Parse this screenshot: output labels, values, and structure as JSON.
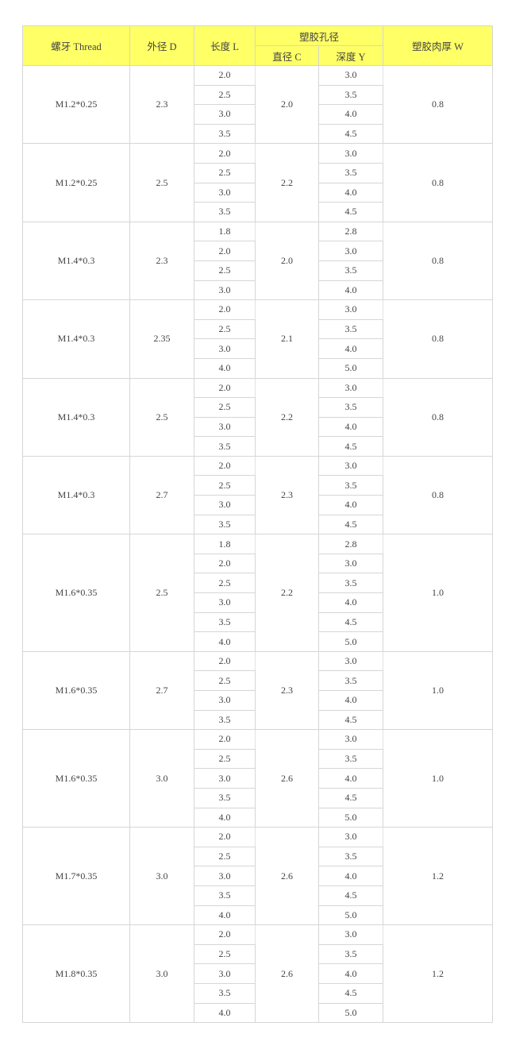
{
  "header": {
    "thread": "螺牙 Thread",
    "outer_d": "外径 D",
    "length_l": "长度 L",
    "hole": "塑胶孔径",
    "dia_c": "直径 C",
    "depth_y": "深度 Y",
    "wall_w": "塑胶肉厚 W"
  },
  "colors": {
    "header_bg": "#ffff66",
    "border": "#d6d6d6"
  },
  "groups": [
    {
      "thread": "M1.2*0.25",
      "d": "2.3",
      "c": "2.0",
      "w": "0.8",
      "l": [
        "2.0",
        "2.5",
        "3.0",
        "3.5"
      ],
      "y": [
        "3.0",
        "3.5",
        "4.0",
        "4.5"
      ]
    },
    {
      "thread": "M1.2*0.25",
      "d": "2.5",
      "c": "2.2",
      "w": "0.8",
      "l": [
        "2.0",
        "2.5",
        "3.0",
        "3.5"
      ],
      "y": [
        "3.0",
        "3.5",
        "4.0",
        "4.5"
      ]
    },
    {
      "thread": "M1.4*0.3",
      "d": "2.3",
      "c": "2.0",
      "w": "0.8",
      "l": [
        "1.8",
        "2.0",
        "2.5",
        "3.0"
      ],
      "y": [
        "2.8",
        "3.0",
        "3.5",
        "4.0"
      ]
    },
    {
      "thread": "M1.4*0.3",
      "d": "2.35",
      "c": "2.1",
      "w": "0.8",
      "l": [
        "2.0",
        "2.5",
        "3.0",
        "4.0"
      ],
      "y": [
        "3.0",
        "3.5",
        "4.0",
        "5.0"
      ]
    },
    {
      "thread": "M1.4*0.3",
      "d": "2.5",
      "c": "2.2",
      "w": "0.8",
      "l": [
        "2.0",
        "2.5",
        "3.0",
        "3.5"
      ],
      "y": [
        "3.0",
        "3.5",
        "4.0",
        "4.5"
      ]
    },
    {
      "thread": "M1.4*0.3",
      "d": "2.7",
      "c": "2.3",
      "w": "0.8",
      "l": [
        "2.0",
        "2.5",
        "3.0",
        "3.5"
      ],
      "y": [
        "3.0",
        "3.5",
        "4.0",
        "4.5"
      ]
    },
    {
      "thread": "M1.6*0.35",
      "d": "2.5",
      "c": "2.2",
      "w": "1.0",
      "l": [
        "1.8",
        "2.0",
        "2.5",
        "3.0",
        "3.5",
        "4.0"
      ],
      "y": [
        "2.8",
        "3.0",
        "3.5",
        "4.0",
        "4.5",
        "5.0"
      ]
    },
    {
      "thread": "M1.6*0.35",
      "d": "2.7",
      "c": "2.3",
      "w": "1.0",
      "l": [
        "2.0",
        "2.5",
        "3.0",
        "3.5"
      ],
      "y": [
        "3.0",
        "3.5",
        "4.0",
        "4.5"
      ]
    },
    {
      "thread": "M1.6*0.35",
      "d": "3.0",
      "c": "2.6",
      "w": "1.0",
      "l": [
        "2.0",
        "2.5",
        "3.0",
        "3.5",
        "4.0"
      ],
      "y": [
        "3.0",
        "3.5",
        "4.0",
        "4.5",
        "5.0"
      ]
    },
    {
      "thread": "M1.7*0.35",
      "d": "3.0",
      "c": "2.6",
      "w": "1.2",
      "l": [
        "2.0",
        "2.5",
        "3.0",
        "3.5",
        "4.0"
      ],
      "y": [
        "3.0",
        "3.5",
        "4.0",
        "4.5",
        "5.0"
      ]
    },
    {
      "thread": "M1.8*0.35",
      "d": "3.0",
      "c": "2.6",
      "w": "1.2",
      "l": [
        "2.0",
        "2.5",
        "3.0",
        "3.5",
        "4.0"
      ],
      "y": [
        "3.0",
        "3.5",
        "4.0",
        "4.5",
        "5.0"
      ]
    }
  ]
}
